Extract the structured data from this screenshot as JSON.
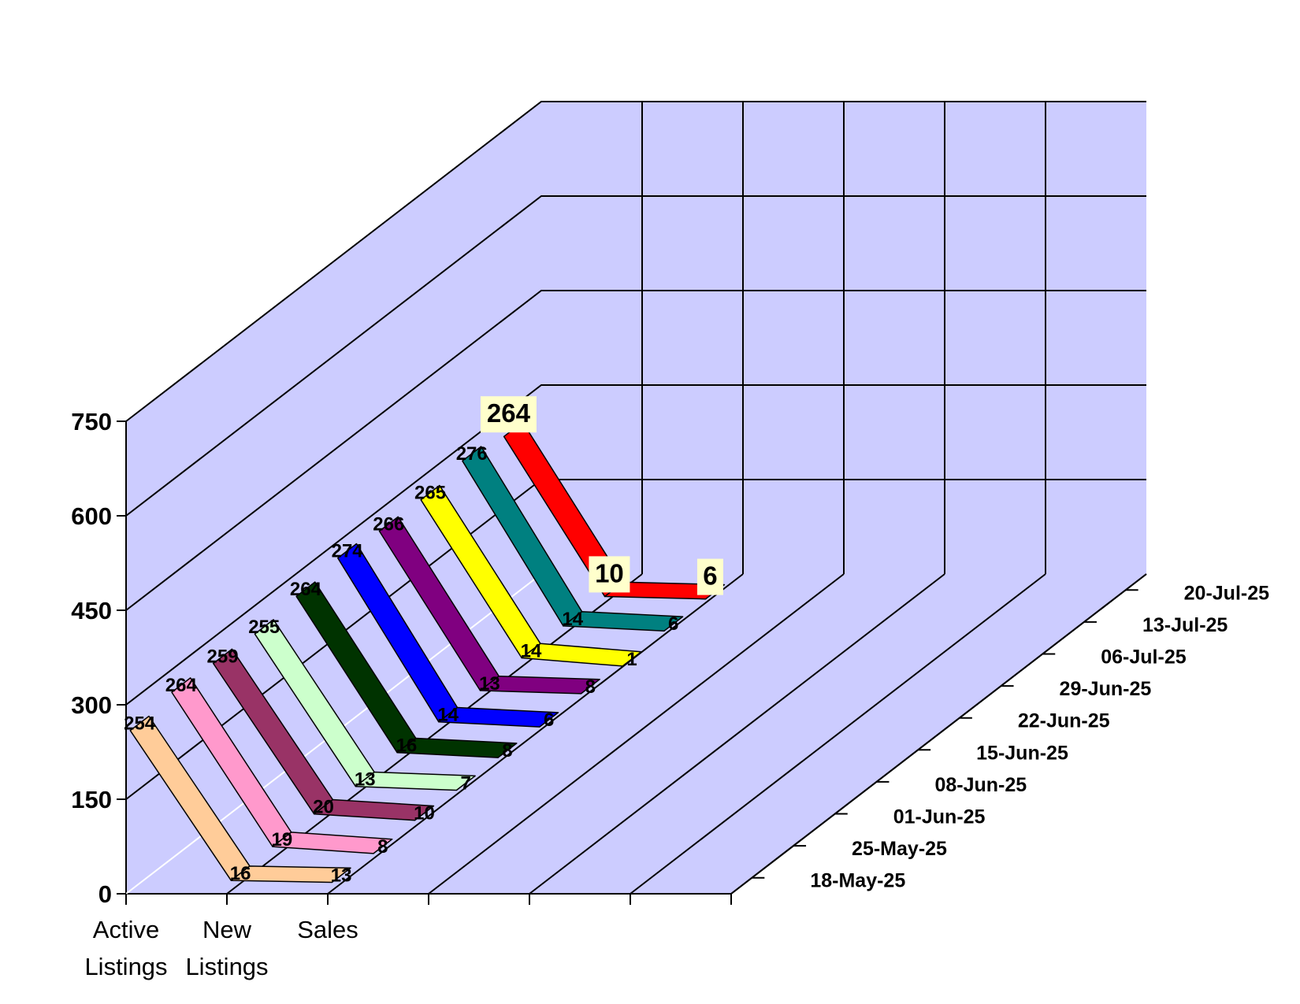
{
  "colors": {
    "wall": "#ccccff",
    "gridline": "#000000",
    "label_highlight": "#ffffcc"
  },
  "chart_data": {
    "type": "line",
    "view": "3d",
    "categories": [
      "Active Listings",
      "New Listings",
      "Sales"
    ],
    "category_labels": [
      [
        "Active",
        "Listings"
      ],
      [
        "New",
        "Listings"
      ],
      [
        "Sales",
        ""
      ]
    ],
    "ylim": [
      0,
      750
    ],
    "yticks": [
      "0",
      "150",
      "300",
      "450",
      "600",
      "750"
    ],
    "series": [
      {
        "name": "18-May-25",
        "color": "#ffcc99",
        "values": [
          254,
          16,
          13
        ]
      },
      {
        "name": "25-May-25",
        "color": "#ff99cc",
        "values": [
          264,
          19,
          8
        ]
      },
      {
        "name": "01-Jun-25",
        "color": "#993366",
        "values": [
          259,
          20,
          10
        ]
      },
      {
        "name": "08-Jun-25",
        "color": "#ccffcc",
        "values": [
          255,
          13,
          7
        ]
      },
      {
        "name": "15-Jun-25",
        "color": "#003300",
        "values": [
          264,
          16,
          8
        ]
      },
      {
        "name": "22-Jun-25",
        "color": "#0000ff",
        "values": [
          274,
          14,
          6
        ]
      },
      {
        "name": "29-Jun-25",
        "color": "#800080",
        "values": [
          266,
          13,
          8
        ]
      },
      {
        "name": "06-Jul-25",
        "color": "#ffff00",
        "values": [
          265,
          14,
          1
        ]
      },
      {
        "name": "13-Jul-25",
        "color": "#008080",
        "values": [
          276,
          14,
          6
        ]
      },
      {
        "name": "20-Jul-25",
        "color": "#ff0000",
        "values": [
          264,
          10,
          6
        ]
      }
    ]
  }
}
